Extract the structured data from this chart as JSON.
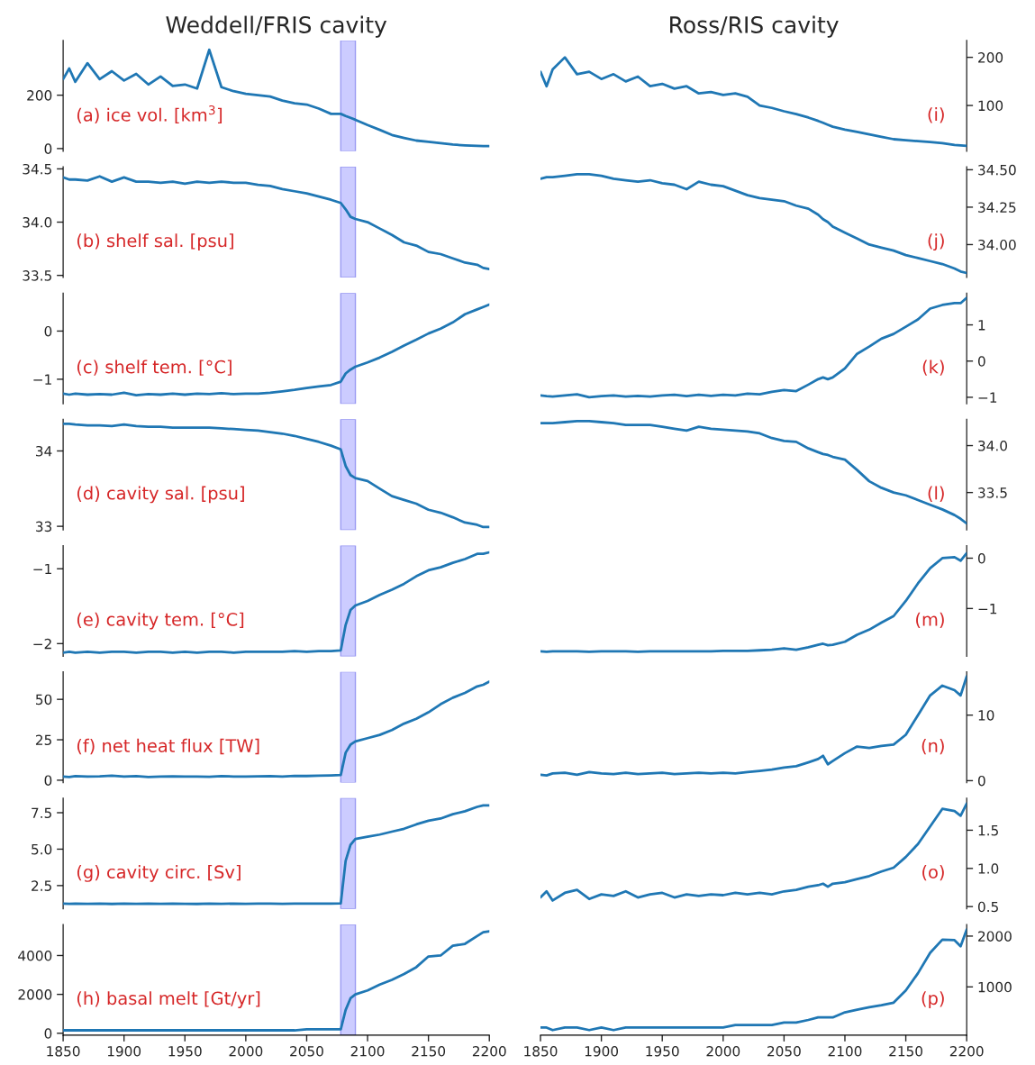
{
  "chart_data": [
    {
      "type": "line",
      "title": "Weddell/FRIS cavity",
      "x": [
        1850,
        1855,
        1860,
        1870,
        1880,
        1890,
        1900,
        1910,
        1920,
        1930,
        1940,
        1950,
        1960,
        1970,
        1980,
        1990,
        2000,
        2010,
        2020,
        2030,
        2040,
        2050,
        2060,
        2070,
        2078,
        2082,
        2086,
        2090,
        2100,
        2110,
        2120,
        2130,
        2140,
        2150,
        2160,
        2170,
        2180,
        2190,
        2195,
        2200
      ],
      "xlim": [
        1850,
        2200
      ],
      "ylim": [
        -10,
        405
      ],
      "yticks": [
        0,
        200
      ],
      "tick_labels": "y",
      "annotations": [
        "(a) ice vol. [km$^{3}$]"
      ],
      "bands": [
        {
          "axis": "x",
          "from": 2078,
          "to": 2090,
          "color": "#ccccff"
        }
      ],
      "series": [
        {
          "color": "#1f77b4",
          "values": [
            260,
            300,
            250,
            320,
            260,
            290,
            255,
            280,
            240,
            270,
            235,
            240,
            225,
            370,
            230,
            215,
            205,
            200,
            195,
            180,
            170,
            165,
            150,
            130,
            130,
            122,
            115,
            108,
            88,
            70,
            51,
            40,
            30,
            25,
            20,
            15,
            12,
            10,
            9,
            9
          ]
        }
      ]
    },
    {
      "type": "line",
      "x": [
        1850,
        1855,
        1860,
        1870,
        1880,
        1890,
        1900,
        1910,
        1920,
        1930,
        1940,
        1950,
        1960,
        1970,
        1980,
        1990,
        2000,
        2010,
        2020,
        2030,
        2040,
        2050,
        2060,
        2070,
        2078,
        2082,
        2086,
        2090,
        2100,
        2110,
        2120,
        2130,
        2140,
        2150,
        2160,
        2170,
        2180,
        2190,
        2195,
        2200
      ],
      "xlim": [
        1850,
        2200
      ],
      "ylim": [
        33.48,
        34.52
      ],
      "yticks": [
        {
          "value": 33.5,
          "label": "33.5"
        },
        {
          "value": 34.0,
          "label": "34.0"
        },
        {
          "value": 34.5,
          "label": "34.5"
        }
      ],
      "tick_labels": "y",
      "annotations": [
        "(b) shelf sal. [psu]"
      ],
      "bands": [
        {
          "axis": "x",
          "from": 2078,
          "to": 2090,
          "color": "#ccccff"
        }
      ],
      "series": [
        {
          "color": "#1f77b4",
          "values": [
            34.42,
            34.4,
            34.4,
            34.39,
            34.43,
            34.38,
            34.42,
            34.38,
            34.38,
            34.37,
            34.38,
            34.36,
            34.38,
            34.37,
            34.38,
            34.37,
            34.37,
            34.35,
            34.34,
            34.31,
            34.29,
            34.27,
            34.24,
            34.21,
            34.18,
            34.12,
            34.05,
            34.03,
            34.0,
            33.94,
            33.88,
            33.81,
            33.78,
            33.72,
            33.7,
            33.66,
            33.62,
            33.6,
            33.57,
            33.56
          ]
        }
      ]
    },
    {
      "type": "line",
      "x": [
        1850,
        1855,
        1860,
        1870,
        1880,
        1890,
        1900,
        1910,
        1920,
        1930,
        1940,
        1950,
        1960,
        1970,
        1980,
        1990,
        2000,
        2010,
        2020,
        2030,
        2040,
        2050,
        2060,
        2070,
        2078,
        2082,
        2086,
        2090,
        2100,
        2110,
        2120,
        2130,
        2140,
        2150,
        2160,
        2170,
        2180,
        2190,
        2195,
        2200
      ],
      "xlim": [
        1850,
        2200
      ],
      "ylim": [
        -1.51,
        0.79
      ],
      "yticks": [
        {
          "value": -1,
          "label": "−1"
        },
        {
          "value": 0,
          "label": "0"
        }
      ],
      "tick_labels": "y",
      "annotations": [
        "(c) shelf tem. [°C]"
      ],
      "bands": [
        {
          "axis": "x",
          "from": 2078,
          "to": 2090,
          "color": "#ccccff"
        }
      ],
      "series": [
        {
          "color": "#1f77b4",
          "values": [
            -1.3,
            -1.32,
            -1.3,
            -1.32,
            -1.31,
            -1.32,
            -1.28,
            -1.33,
            -1.31,
            -1.32,
            -1.3,
            -1.32,
            -1.3,
            -1.31,
            -1.29,
            -1.31,
            -1.3,
            -1.3,
            -1.28,
            -1.25,
            -1.22,
            -1.18,
            -1.15,
            -1.12,
            -1.05,
            -0.88,
            -0.8,
            -0.74,
            -0.65,
            -0.55,
            -0.43,
            -0.3,
            -0.18,
            -0.05,
            0.05,
            0.18,
            0.35,
            0.45,
            0.5,
            0.55
          ]
        }
      ]
    },
    {
      "type": "line",
      "x": [
        1850,
        1855,
        1860,
        1870,
        1880,
        1890,
        1900,
        1910,
        1920,
        1930,
        1940,
        1950,
        1960,
        1970,
        1980,
        1990,
        2000,
        2010,
        2020,
        2030,
        2040,
        2050,
        2060,
        2070,
        2078,
        2082,
        2086,
        2090,
        2100,
        2110,
        2120,
        2130,
        2140,
        2150,
        2160,
        2170,
        2180,
        2190,
        2195,
        2200
      ],
      "xlim": [
        1850,
        2200
      ],
      "ylim": [
        32.95,
        34.42
      ],
      "yticks": [
        33,
        34
      ],
      "tick_labels": "y",
      "annotations": [
        "(d) cavity sal. [psu]"
      ],
      "bands": [
        {
          "axis": "x",
          "from": 2078,
          "to": 2090,
          "color": "#ccccff"
        }
      ],
      "series": [
        {
          "color": "#1f77b4",
          "values": [
            34.36,
            34.36,
            34.35,
            34.34,
            34.34,
            34.33,
            34.35,
            34.33,
            34.32,
            34.32,
            34.31,
            34.31,
            34.31,
            34.31,
            34.3,
            34.29,
            34.28,
            34.27,
            34.25,
            34.23,
            34.2,
            34.16,
            34.12,
            34.07,
            34.02,
            33.8,
            33.68,
            33.64,
            33.6,
            33.5,
            33.4,
            33.35,
            33.3,
            33.22,
            33.18,
            33.12,
            33.05,
            33.02,
            32.99,
            32.99
          ]
        }
      ]
    },
    {
      "type": "line",
      "x": [
        1850,
        1855,
        1860,
        1870,
        1880,
        1890,
        1900,
        1910,
        1920,
        1930,
        1940,
        1950,
        1960,
        1970,
        1980,
        1990,
        2000,
        2010,
        2020,
        2030,
        2040,
        2050,
        2060,
        2070,
        2078,
        2082,
        2086,
        2090,
        2100,
        2110,
        2120,
        2130,
        2140,
        2150,
        2160,
        2170,
        2180,
        2190,
        2195,
        2200
      ],
      "xlim": [
        1850,
        2200
      ],
      "ylim": [
        -2.17,
        -0.69
      ],
      "yticks": [
        {
          "value": -2,
          "label": "−2"
        },
        {
          "value": -1,
          "label": "−1"
        }
      ],
      "tick_labels": "y",
      "annotations": [
        "(e) cavity tem. [°C]"
      ],
      "bands": [
        {
          "axis": "x",
          "from": 2078,
          "to": 2090,
          "color": "#ccccff"
        }
      ],
      "series": [
        {
          "color": "#1f77b4",
          "values": [
            -2.12,
            -2.11,
            -2.12,
            -2.11,
            -2.12,
            -2.11,
            -2.11,
            -2.12,
            -2.11,
            -2.11,
            -2.12,
            -2.11,
            -2.12,
            -2.11,
            -2.11,
            -2.12,
            -2.11,
            -2.11,
            -2.11,
            -2.11,
            -2.1,
            -2.11,
            -2.1,
            -2.1,
            -2.09,
            -1.75,
            -1.55,
            -1.49,
            -1.43,
            -1.35,
            -1.28,
            -1.2,
            -1.1,
            -1.02,
            -0.98,
            -0.92,
            -0.87,
            -0.8,
            -0.8,
            -0.78
          ]
        }
      ]
    },
    {
      "type": "line",
      "x": [
        1850,
        1855,
        1860,
        1870,
        1880,
        1890,
        1900,
        1910,
        1920,
        1930,
        1940,
        1950,
        1960,
        1970,
        1980,
        1990,
        2000,
        2010,
        2020,
        2030,
        2040,
        2050,
        2060,
        2070,
        2078,
        2082,
        2086,
        2090,
        2100,
        2110,
        2120,
        2130,
        2140,
        2150,
        2160,
        2170,
        2180,
        2190,
        2195,
        2200
      ],
      "xlim": [
        1850,
        2200
      ],
      "ylim": [
        -1.5,
        67
      ],
      "yticks": [
        0,
        25,
        50
      ],
      "tick_labels": "y",
      "annotations": [
        "(f) net heat flux [TW]"
      ],
      "bands": [
        {
          "axis": "x",
          "from": 2078,
          "to": 2090,
          "color": "#ccccff"
        }
      ],
      "series": [
        {
          "color": "#1f77b4",
          "values": [
            2.3,
            2.0,
            2.5,
            2.2,
            2.4,
            2.8,
            2.2,
            2.5,
            2.0,
            2.3,
            2.4,
            2.2,
            2.3,
            2.1,
            2.5,
            2.3,
            2.2,
            2.4,
            2.5,
            2.3,
            2.7,
            2.6,
            2.8,
            3.0,
            3.2,
            17,
            22,
            24,
            26,
            28,
            31,
            35,
            38,
            42,
            47,
            51,
            54,
            58,
            59,
            61
          ]
        }
      ]
    },
    {
      "type": "line",
      "x": [
        1850,
        1855,
        1860,
        1870,
        1880,
        1890,
        1900,
        1910,
        1920,
        1930,
        1940,
        1950,
        1960,
        1970,
        1980,
        1990,
        2000,
        2010,
        2020,
        2030,
        2040,
        2050,
        2060,
        2070,
        2078,
        2082,
        2086,
        2090,
        2100,
        2110,
        2120,
        2130,
        2140,
        2150,
        2160,
        2170,
        2180,
        2190,
        2195,
        2200
      ],
      "xlim": [
        1850,
        2200
      ],
      "ylim": [
        0.9,
        8.5
      ],
      "yticks": [
        2.5,
        {
          "value": 5.0,
          "label": "5.0"
        },
        7.5
      ],
      "tick_labels": "y",
      "annotations": [
        "(g) cavity circ. [Sv]"
      ],
      "bands": [
        {
          "axis": "x",
          "from": 2078,
          "to": 2090,
          "color": "#ccccff"
        }
      ],
      "series": [
        {
          "color": "#1f77b4",
          "values": [
            1.26,
            1.25,
            1.26,
            1.25,
            1.26,
            1.24,
            1.26,
            1.25,
            1.26,
            1.25,
            1.26,
            1.25,
            1.24,
            1.26,
            1.25,
            1.26,
            1.25,
            1.26,
            1.26,
            1.25,
            1.27,
            1.26,
            1.27,
            1.27,
            1.28,
            4.2,
            5.3,
            5.7,
            5.85,
            6.0,
            6.2,
            6.4,
            6.7,
            6.95,
            7.1,
            7.4,
            7.6,
            7.9,
            8.0,
            8.0
          ]
        }
      ]
    },
    {
      "type": "line",
      "x": [
        1850,
        1855,
        1860,
        1870,
        1880,
        1890,
        1900,
        1910,
        1920,
        1930,
        1940,
        1950,
        1960,
        1970,
        1980,
        1990,
        2000,
        2010,
        2020,
        2030,
        2040,
        2050,
        2060,
        2070,
        2078,
        2082,
        2086,
        2090,
        2100,
        2110,
        2120,
        2130,
        2140,
        2150,
        2160,
        2170,
        2180,
        2190,
        2195,
        2200
      ],
      "xlim": [
        1850,
        2200
      ],
      "ylim": [
        -100,
        5600
      ],
      "yticks": [
        0,
        2000,
        4000
      ],
      "xticks": [
        1850,
        1900,
        1950,
        2000,
        2050,
        2100,
        2150,
        2200
      ],
      "annotations": [
        "(h) basal melt [Gt/yr]"
      ],
      "bands": [
        {
          "axis": "x",
          "from": 2078,
          "to": 2090,
          "color": "#ccccff"
        }
      ],
      "series": [
        {
          "color": "#1f77b4",
          "values": [
            150,
            150,
            150,
            150,
            150,
            150,
            150,
            150,
            150,
            150,
            150,
            150,
            150,
            150,
            150,
            150,
            150,
            150,
            150,
            150,
            150,
            200,
            200,
            200,
            200,
            1200,
            1800,
            2000,
            2200,
            2500,
            2750,
            3050,
            3400,
            3950,
            4000,
            4500,
            4600,
            5000,
            5200,
            5250
          ]
        }
      ]
    },
    {
      "type": "line",
      "title": "Ross/RIS cavity",
      "x": [
        1850,
        1855,
        1860,
        1870,
        1880,
        1890,
        1900,
        1910,
        1920,
        1930,
        1940,
        1950,
        1960,
        1970,
        1980,
        1990,
        2000,
        2010,
        2020,
        2030,
        2040,
        2050,
        2060,
        2070,
        2078,
        2082,
        2086,
        2090,
        2100,
        2110,
        2120,
        2130,
        2140,
        2150,
        2160,
        2170,
        2180,
        2190,
        2195,
        2200
      ],
      "xlim": [
        1850,
        2200
      ],
      "y2lim": [
        5,
        235
      ],
      "y2ticks": [
        100,
        200
      ],
      "tick_labels": "y",
      "annotations": [
        "(i)"
      ],
      "series": [
        {
          "color": "#1f77b4",
          "axis": "y2",
          "values": [
            170,
            140,
            175,
            200,
            165,
            170,
            155,
            165,
            150,
            160,
            140,
            145,
            135,
            140,
            125,
            128,
            122,
            125,
            118,
            100,
            95,
            88,
            82,
            75,
            68,
            64,
            60,
            56,
            50,
            45,
            40,
            35,
            30,
            28,
            26,
            24,
            22,
            18,
            17,
            16
          ]
        }
      ]
    },
    {
      "type": "line",
      "x": [
        1850,
        1855,
        1860,
        1870,
        1880,
        1890,
        1900,
        1910,
        1920,
        1930,
        1940,
        1950,
        1960,
        1970,
        1980,
        1990,
        2000,
        2010,
        2020,
        2030,
        2040,
        2050,
        2060,
        2070,
        2078,
        2082,
        2086,
        2090,
        2100,
        2110,
        2120,
        2130,
        2140,
        2150,
        2160,
        2170,
        2180,
        2190,
        2195,
        2200
      ],
      "xlim": [
        1850,
        2200
      ],
      "y2lim": [
        33.78,
        34.52
      ],
      "y2ticks": [
        {
          "value": 34.0,
          "label": "34.00"
        },
        {
          "value": 34.25,
          "label": "34.25"
        },
        {
          "value": 34.5,
          "label": "34.50"
        }
      ],
      "tick_labels": "y",
      "annotations": [
        "(j)"
      ],
      "series": [
        {
          "color": "#1f77b4",
          "axis": "y2",
          "values": [
            34.44,
            34.45,
            34.45,
            34.46,
            34.47,
            34.47,
            34.46,
            34.44,
            34.43,
            34.42,
            34.43,
            34.41,
            34.4,
            34.37,
            34.42,
            34.4,
            34.39,
            34.36,
            34.33,
            34.31,
            34.3,
            34.29,
            34.26,
            34.24,
            34.2,
            34.17,
            34.15,
            34.12,
            34.08,
            34.04,
            34.0,
            33.98,
            33.96,
            33.93,
            33.91,
            33.89,
            33.87,
            33.84,
            33.82,
            33.81
          ]
        }
      ]
    },
    {
      "type": "line",
      "x": [
        1850,
        1855,
        1860,
        1870,
        1880,
        1890,
        1900,
        1910,
        1920,
        1930,
        1940,
        1950,
        1960,
        1970,
        1980,
        1990,
        2000,
        2010,
        2020,
        2030,
        2040,
        2050,
        2060,
        2070,
        2078,
        2082,
        2086,
        2090,
        2100,
        2110,
        2120,
        2130,
        2140,
        2150,
        2160,
        2170,
        2180,
        2190,
        2195,
        2200
      ],
      "xlim": [
        1850,
        2200
      ],
      "y2lim": [
        -1.18,
        1.88
      ],
      "y2ticks": [
        {
          "value": -1,
          "label": "−1"
        },
        {
          "value": 0,
          "label": "0"
        },
        {
          "value": 1,
          "label": "1"
        }
      ],
      "tick_labels": "y",
      "annotations": [
        "(k)"
      ],
      "series": [
        {
          "color": "#1f77b4",
          "axis": "y2",
          "values": [
            -0.95,
            -0.97,
            -0.98,
            -0.95,
            -0.92,
            -1.0,
            -0.97,
            -0.95,
            -0.98,
            -0.96,
            -0.98,
            -0.95,
            -0.93,
            -0.97,
            -0.93,
            -0.96,
            -0.93,
            -0.95,
            -0.9,
            -0.92,
            -0.85,
            -0.8,
            -0.83,
            -0.65,
            -0.5,
            -0.45,
            -0.5,
            -0.45,
            -0.2,
            0.2,
            0.4,
            0.62,
            0.75,
            0.95,
            1.15,
            1.45,
            1.55,
            1.6,
            1.6,
            1.75
          ]
        }
      ]
    },
    {
      "type": "line",
      "x": [
        1850,
        1855,
        1860,
        1870,
        1880,
        1890,
        1900,
        1910,
        1920,
        1930,
        1940,
        1950,
        1960,
        1970,
        1980,
        1990,
        2000,
        2010,
        2020,
        2030,
        2040,
        2050,
        2060,
        2070,
        2078,
        2082,
        2086,
        2090,
        2100,
        2110,
        2120,
        2130,
        2140,
        2150,
        2160,
        2170,
        2180,
        2190,
        2195,
        2200
      ],
      "xlim": [
        1850,
        2200
      ],
      "y2lim": [
        33.1,
        34.28
      ],
      "y2ticks": [
        33.5,
        {
          "value": 34.0,
          "label": "34.0"
        }
      ],
      "tick_labels": "y",
      "annotations": [
        "(l)"
      ],
      "series": [
        {
          "color": "#1f77b4",
          "axis": "y2",
          "values": [
            34.24,
            34.24,
            34.24,
            34.25,
            34.26,
            34.26,
            34.25,
            34.24,
            34.22,
            34.22,
            34.22,
            34.2,
            34.18,
            34.16,
            34.2,
            34.18,
            34.17,
            34.16,
            34.15,
            34.13,
            34.08,
            34.05,
            34.04,
            33.97,
            33.93,
            33.91,
            33.9,
            33.88,
            33.85,
            33.74,
            33.62,
            33.55,
            33.5,
            33.47,
            33.42,
            33.37,
            33.32,
            33.26,
            33.22,
            33.17
          ]
        }
      ]
    },
    {
      "type": "line",
      "x": [
        1850,
        1855,
        1860,
        1870,
        1880,
        1890,
        1900,
        1910,
        1920,
        1930,
        1940,
        1950,
        1960,
        1970,
        1980,
        1990,
        2000,
        2010,
        2020,
        2030,
        2040,
        2050,
        2060,
        2070,
        2078,
        2082,
        2086,
        2090,
        2100,
        2110,
        2120,
        2130,
        2140,
        2150,
        2160,
        2170,
        2180,
        2190,
        2195,
        2200
      ],
      "xlim": [
        1850,
        2200
      ],
      "y2lim": [
        -1.95,
        0.25
      ],
      "y2ticks": [
        {
          "value": -1,
          "label": "−1"
        },
        {
          "value": 0,
          "label": "0"
        }
      ],
      "tick_labels": "y",
      "annotations": [
        "(m)"
      ],
      "series": [
        {
          "color": "#1f77b4",
          "axis": "y2",
          "values": [
            -1.85,
            -1.86,
            -1.85,
            -1.85,
            -1.85,
            -1.86,
            -1.85,
            -1.85,
            -1.85,
            -1.86,
            -1.85,
            -1.85,
            -1.85,
            -1.85,
            -1.85,
            -1.85,
            -1.84,
            -1.84,
            -1.84,
            -1.83,
            -1.82,
            -1.79,
            -1.82,
            -1.77,
            -1.72,
            -1.7,
            -1.73,
            -1.72,
            -1.66,
            -1.52,
            -1.42,
            -1.28,
            -1.15,
            -0.85,
            -0.5,
            -0.2,
            0.0,
            0.02,
            -0.05,
            0.1
          ]
        }
      ]
    },
    {
      "type": "line",
      "x": [
        1850,
        1855,
        1860,
        1870,
        1880,
        1890,
        1900,
        1910,
        1920,
        1930,
        1940,
        1950,
        1960,
        1970,
        1980,
        1990,
        2000,
        2010,
        2020,
        2030,
        2040,
        2050,
        2060,
        2070,
        2078,
        2082,
        2086,
        2090,
        2100,
        2110,
        2120,
        2130,
        2140,
        2150,
        2160,
        2170,
        2180,
        2190,
        2195,
        2200
      ],
      "xlim": [
        1850,
        2200
      ],
      "y2lim": [
        -0.3,
        16.6
      ],
      "y2ticks": [
        0,
        10
      ],
      "tick_labels": "y",
      "annotations": [
        "(n)"
      ],
      "series": [
        {
          "color": "#1f77b4",
          "axis": "y2",
          "values": [
            0.9,
            0.8,
            1.1,
            1.2,
            0.9,
            1.3,
            1.1,
            1.0,
            1.2,
            1.0,
            1.1,
            1.2,
            1.0,
            1.1,
            1.2,
            1.1,
            1.2,
            1.1,
            1.3,
            1.5,
            1.7,
            2.0,
            2.2,
            2.8,
            3.3,
            3.8,
            2.5,
            3.0,
            4.2,
            5.2,
            5.0,
            5.3,
            5.5,
            7.0,
            10.0,
            13.0,
            14.5,
            13.8,
            13.0,
            15.9
          ]
        }
      ]
    },
    {
      "type": "line",
      "x": [
        1850,
        1855,
        1860,
        1870,
        1880,
        1890,
        1900,
        1910,
        1920,
        1930,
        1940,
        1950,
        1960,
        1970,
        1980,
        1990,
        2000,
        2010,
        2020,
        2030,
        2040,
        2050,
        2060,
        2070,
        2078,
        2082,
        2086,
        2090,
        2100,
        2110,
        2120,
        2130,
        2140,
        2150,
        2160,
        2170,
        2180,
        2190,
        2195,
        2200
      ],
      "xlim": [
        1850,
        2200
      ],
      "y2lim": [
        0.47,
        1.92
      ],
      "y2ticks": [
        0.5,
        {
          "value": 1.0,
          "label": "1.0"
        },
        1.5
      ],
      "tick_labels": "y",
      "annotations": [
        "(o)"
      ],
      "series": [
        {
          "color": "#1f77b4",
          "axis": "y2",
          "values": [
            0.62,
            0.7,
            0.58,
            0.68,
            0.72,
            0.6,
            0.66,
            0.64,
            0.7,
            0.62,
            0.66,
            0.68,
            0.62,
            0.66,
            0.64,
            0.66,
            0.65,
            0.68,
            0.66,
            0.68,
            0.66,
            0.7,
            0.72,
            0.76,
            0.78,
            0.8,
            0.76,
            0.8,
            0.82,
            0.86,
            0.9,
            0.96,
            1.01,
            1.15,
            1.32,
            1.55,
            1.78,
            1.75,
            1.69,
            1.85
          ]
        }
      ]
    },
    {
      "type": "line",
      "x": [
        1850,
        1855,
        1860,
        1870,
        1880,
        1890,
        1900,
        1910,
        1920,
        1930,
        1940,
        1950,
        1960,
        1970,
        1980,
        1990,
        2000,
        2010,
        2020,
        2030,
        2040,
        2050,
        2060,
        2070,
        2078,
        2082,
        2086,
        2090,
        2100,
        2110,
        2120,
        2130,
        2140,
        2150,
        2160,
        2170,
        2180,
        2190,
        2195,
        2200
      ],
      "xlim": [
        1850,
        2200
      ],
      "y2lim": [
        50,
        2230
      ],
      "y2ticks": [
        1000,
        2000
      ],
      "xticks": [
        1850,
        1900,
        1950,
        2000,
        2050,
        2100,
        2150,
        2200
      ],
      "annotations": [
        "(p)"
      ],
      "series": [
        {
          "color": "#1f77b4",
          "axis": "y2",
          "values": [
            200,
            200,
            150,
            200,
            200,
            150,
            200,
            150,
            200,
            200,
            200,
            200,
            200,
            200,
            200,
            200,
            200,
            250,
            250,
            250,
            250,
            300,
            300,
            350,
            400,
            400,
            400,
            400,
            500,
            550,
            600,
            640,
            690,
            930,
            1270,
            1670,
            1930,
            1920,
            1800,
            2130
          ]
        }
      ]
    }
  ]
}
